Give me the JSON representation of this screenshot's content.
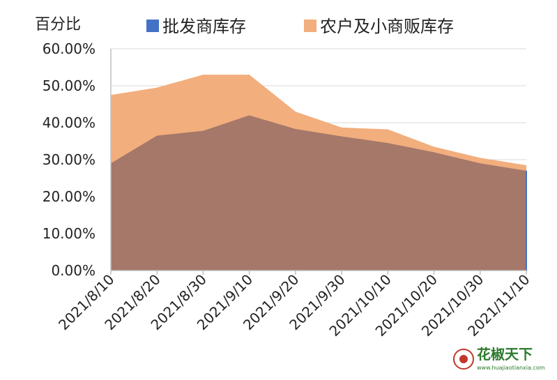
{
  "chart_data": {
    "type": "area",
    "ylabel": "百分比",
    "categories": [
      "2021/8/10",
      "2021/8/20",
      "2021/8/30",
      "2021/9/10",
      "2021/9/20",
      "2021/9/30",
      "2021/10/10",
      "2021/10/20",
      "2021/10/30",
      "2021/11/10"
    ],
    "y_ticks": [
      "0.00%",
      "10.00%",
      "20.00%",
      "30.00%",
      "40.00%",
      "50.00%",
      "60.00%"
    ],
    "ylim": [
      0,
      60
    ],
    "grid": true,
    "legend_position": "top",
    "series": [
      {
        "name": "农户及小商贩库存",
        "color": "#F2AE7D",
        "values": [
          47.5,
          49.5,
          53.0,
          53.0,
          43.0,
          38.7,
          38.2,
          33.5,
          30.5,
          28.5
        ]
      },
      {
        "name": "批发商库存",
        "color": "#4472C4",
        "values": [
          29.0,
          36.5,
          37.8,
          42.0,
          38.3,
          36.3,
          34.5,
          32.0,
          29.0,
          27.0
        ]
      }
    ],
    "overlap_color": "#A57869"
  },
  "watermark": {
    "name": "花椒天下",
    "url": "www.huajiaotianxia.com"
  }
}
